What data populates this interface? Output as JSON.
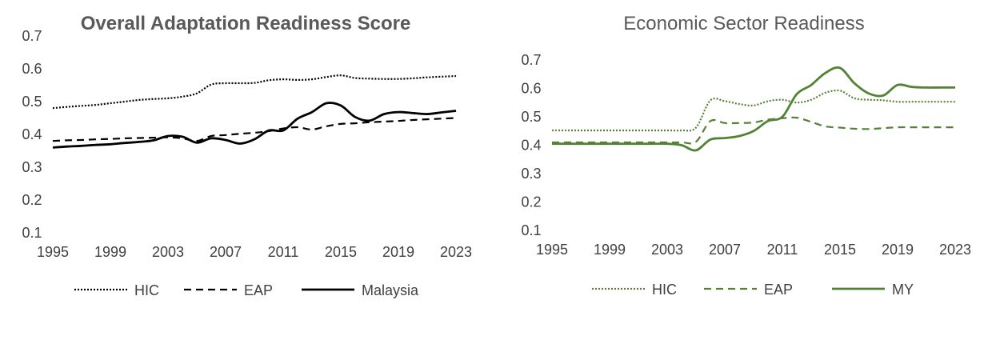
{
  "chart_data": [
    {
      "type": "line",
      "title": "Overall Adaptation Readiness Score",
      "xlabel": "",
      "ylabel": "",
      "xlim": [
        1995,
        2023
      ],
      "ylim": [
        0.1,
        0.7
      ],
      "x_ticks": [
        "1995",
        "1999",
        "2003",
        "2007",
        "2011",
        "2015",
        "2019",
        "2023"
      ],
      "y_ticks": [
        "0.1",
        "0.2",
        "0.3",
        "0.4",
        "0.5",
        "0.6",
        "0.7"
      ],
      "grid": false,
      "legend": "bottom",
      "x": [
        1995,
        1996,
        1997,
        1998,
        1999,
        2000,
        2001,
        2002,
        2003,
        2004,
        2005,
        2006,
        2007,
        2008,
        2009,
        2010,
        2011,
        2012,
        2013,
        2014,
        2015,
        2016,
        2017,
        2018,
        2019,
        2020,
        2021,
        2022,
        2023
      ],
      "series": [
        {
          "name": "HIC",
          "style": "dotted",
          "color": "#000000",
          "values": [
            0.48,
            0.484,
            0.487,
            0.49,
            0.495,
            0.5,
            0.505,
            0.508,
            0.51,
            0.515,
            0.525,
            0.552,
            0.556,
            0.556,
            0.557,
            0.565,
            0.568,
            0.566,
            0.568,
            0.575,
            0.58,
            0.572,
            0.57,
            0.569,
            0.569,
            0.571,
            0.574,
            0.576,
            0.578
          ]
        },
        {
          "name": "EAP",
          "style": "dashed",
          "color": "#000000",
          "values": [
            0.38,
            0.382,
            0.383,
            0.385,
            0.386,
            0.388,
            0.389,
            0.39,
            0.391,
            0.388,
            0.38,
            0.395,
            0.398,
            0.402,
            0.405,
            0.41,
            0.418,
            0.422,
            0.415,
            0.425,
            0.432,
            0.434,
            0.437,
            0.439,
            0.441,
            0.444,
            0.446,
            0.448,
            0.45
          ]
        },
        {
          "name": "Malaysia",
          "style": "solid",
          "color": "#000000",
          "values": [
            0.36,
            0.363,
            0.365,
            0.368,
            0.37,
            0.374,
            0.377,
            0.382,
            0.395,
            0.393,
            0.375,
            0.388,
            0.383,
            0.372,
            0.385,
            0.412,
            0.412,
            0.448,
            0.468,
            0.495,
            0.488,
            0.453,
            0.442,
            0.462,
            0.468,
            0.465,
            0.462,
            0.467,
            0.472
          ]
        }
      ]
    },
    {
      "type": "line",
      "title": "Economic Sector Readiness",
      "xlabel": "",
      "ylabel": "",
      "xlim": [
        1995,
        2023
      ],
      "ylim": [
        0.1,
        0.7
      ],
      "x_ticks": [
        "1995",
        "1999",
        "2003",
        "2007",
        "2011",
        "2015",
        "2019",
        "2023"
      ],
      "y_ticks": [
        "0.1",
        "0.2",
        "0.3",
        "0.4",
        "0.5",
        "0.6",
        "0.7"
      ],
      "grid": false,
      "legend": "bottom",
      "x": [
        1995,
        1996,
        1997,
        1998,
        1999,
        2000,
        2001,
        2002,
        2003,
        2004,
        2005,
        2006,
        2007,
        2008,
        2009,
        2010,
        2011,
        2012,
        2013,
        2014,
        2015,
        2016,
        2017,
        2018,
        2019,
        2020,
        2021,
        2022,
        2023
      ],
      "series": [
        {
          "name": "HIC",
          "style": "dotted",
          "color": "#548235",
          "values": [
            0.452,
            0.452,
            0.452,
            0.452,
            0.452,
            0.452,
            0.452,
            0.452,
            0.452,
            0.452,
            0.462,
            0.558,
            0.555,
            0.545,
            0.54,
            0.555,
            0.56,
            0.55,
            0.56,
            0.585,
            0.592,
            0.565,
            0.56,
            0.558,
            0.553,
            0.553,
            0.553,
            0.553,
            0.553
          ]
        },
        {
          "name": "EAP",
          "style": "dashed",
          "color": "#548235",
          "values": [
            0.41,
            0.41,
            0.41,
            0.41,
            0.41,
            0.41,
            0.41,
            0.41,
            0.41,
            0.41,
            0.412,
            0.485,
            0.478,
            0.478,
            0.48,
            0.49,
            0.495,
            0.497,
            0.482,
            0.466,
            0.462,
            0.458,
            0.457,
            0.46,
            0.463,
            0.463,
            0.463,
            0.463,
            0.463
          ]
        },
        {
          "name": "MY",
          "style": "solid",
          "color": "#548235",
          "values": [
            0.405,
            0.405,
            0.405,
            0.405,
            0.405,
            0.405,
            0.405,
            0.405,
            0.405,
            0.4,
            0.382,
            0.42,
            0.425,
            0.432,
            0.45,
            0.485,
            0.5,
            0.58,
            0.612,
            0.655,
            0.672,
            0.618,
            0.582,
            0.575,
            0.612,
            0.605,
            0.603,
            0.603,
            0.603
          ]
        }
      ]
    }
  ]
}
